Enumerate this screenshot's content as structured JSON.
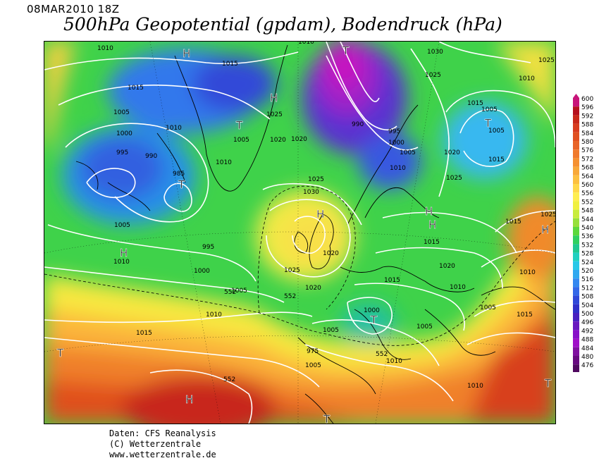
{
  "header": {
    "date": "08MAR2010 18Z",
    "title": "500hPa Geopotential (gpdam), Bodendruck (hPa)"
  },
  "footer": {
    "data_source": "Daten: CFS Reanalysis",
    "copyright": "(C) Wetterzentrale",
    "url": "www.wetterzentrale.de"
  },
  "legend": {
    "levels": [
      {
        "value": "600",
        "color": "#c8147a"
      },
      {
        "value": "596",
        "color": "#b5101e"
      },
      {
        "value": "592",
        "color": "#c8281a"
      },
      {
        "value": "588",
        "color": "#d83c1e"
      },
      {
        "value": "584",
        "color": "#e05020"
      },
      {
        "value": "580",
        "color": "#e86428"
      },
      {
        "value": "576",
        "color": "#f07a2c"
      },
      {
        "value": "572",
        "color": "#f59030"
      },
      {
        "value": "568",
        "color": "#f8a838"
      },
      {
        "value": "564",
        "color": "#fcc040"
      },
      {
        "value": "560",
        "color": "#ffd84a"
      },
      {
        "value": "556",
        "color": "#ffee50"
      },
      {
        "value": "552",
        "color": "#f0f040"
      },
      {
        "value": "548",
        "color": "#c8ec3c"
      },
      {
        "value": "544",
        "color": "#96e03a"
      },
      {
        "value": "540",
        "color": "#5cd83c"
      },
      {
        "value": "536",
        "color": "#30d060"
      },
      {
        "value": "532",
        "color": "#20c890"
      },
      {
        "value": "528",
        "color": "#20d0c0"
      },
      {
        "value": "524",
        "color": "#28c8e8"
      },
      {
        "value": "520",
        "color": "#30a8f0"
      },
      {
        "value": "516",
        "color": "#3488f0"
      },
      {
        "value": "512",
        "color": "#3468e8"
      },
      {
        "value": "508",
        "color": "#3048d8"
      },
      {
        "value": "504",
        "color": "#3030c8"
      },
      {
        "value": "500",
        "color": "#4820c0"
      },
      {
        "value": "496",
        "color": "#6818c0"
      },
      {
        "value": "492",
        "color": "#8810c8"
      },
      {
        "value": "488",
        "color": "#a010c8"
      },
      {
        "value": "484",
        "color": "#8010a0"
      },
      {
        "value": "480",
        "color": "#680a80"
      },
      {
        "value": "476",
        "color": "#500860"
      }
    ]
  },
  "pressure_centers": [
    {
      "letter": "H",
      "kind": "high"
    },
    {
      "letter": "H",
      "kind": "high"
    },
    {
      "letter": "T",
      "kind": "low"
    },
    {
      "letter": "T",
      "kind": "low"
    },
    {
      "letter": "T",
      "kind": "low"
    },
    {
      "letter": "T",
      "kind": "low"
    },
    {
      "letter": "H",
      "kind": "high"
    },
    {
      "letter": "H",
      "kind": "high"
    },
    {
      "letter": "T",
      "kind": "low"
    },
    {
      "letter": "H",
      "kind": "high"
    },
    {
      "letter": "H",
      "kind": "high"
    },
    {
      "letter": "T",
      "kind": "low"
    },
    {
      "letter": "T",
      "kind": "low"
    },
    {
      "letter": "H",
      "kind": "high"
    },
    {
      "letter": "H",
      "kind": "high"
    },
    {
      "letter": "T",
      "kind": "low"
    }
  ],
  "isobar_labels": [
    "1010",
    "1015",
    "1015",
    "1030",
    "1025",
    "1010",
    "1015",
    "1005",
    "1010",
    "1005",
    "1020",
    "1025",
    "1000",
    "1005",
    "990",
    "1010",
    "995",
    "985",
    "1005",
    "995",
    "1000",
    "1005",
    "1010",
    "1020",
    "1025",
    "1030",
    "990",
    "995",
    "1000",
    "1005",
    "1010",
    "1020",
    "1025",
    "1015",
    "1005",
    "1015",
    "1025",
    "1010",
    "1020",
    "1025",
    "1015",
    "1020",
    "1010",
    "1015",
    "1000",
    "1005",
    "1010",
    "1005",
    "1005",
    "1015",
    "1020",
    "1010",
    "1005",
    "1010",
    "975",
    "1010",
    "1015",
    "552",
    "552",
    "552",
    "552",
    "1025"
  ]
}
